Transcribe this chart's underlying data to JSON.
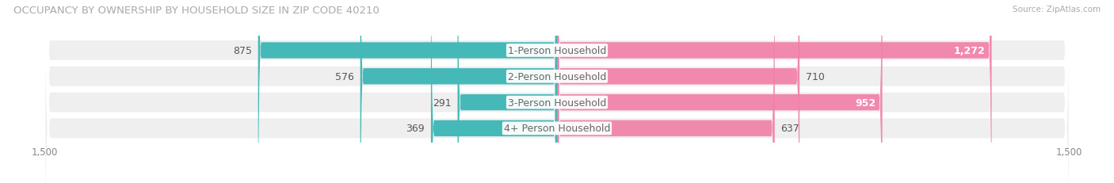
{
  "title": "OCCUPANCY BY OWNERSHIP BY HOUSEHOLD SIZE IN ZIP CODE 40210",
  "source": "Source: ZipAtlas.com",
  "categories": [
    "1-Person Household",
    "2-Person Household",
    "3-Person Household",
    "4+ Person Household"
  ],
  "owner_values": [
    875,
    576,
    291,
    369
  ],
  "renter_values": [
    1272,
    710,
    952,
    637
  ],
  "owner_color": "#45b8b8",
  "renter_color": "#f07fa8",
  "renter_color_light": "#f9c0d4",
  "row_bg_color": "#efefef",
  "xlim": 1500,
  "label_fontsize": 9,
  "title_fontsize": 9.5,
  "axis_tick_fontsize": 8.5,
  "legend_fontsize": 8.5,
  "bar_height": 0.62
}
